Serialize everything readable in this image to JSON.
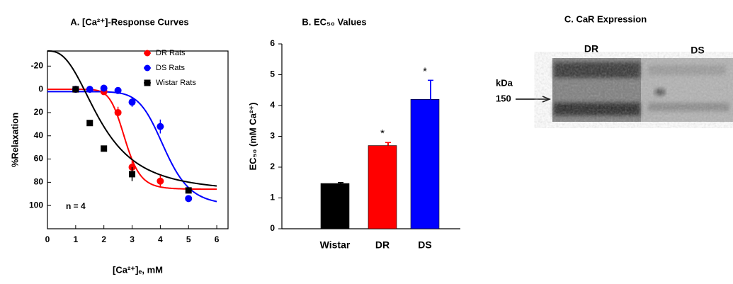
{
  "chart_data": [
    {
      "type": "line",
      "title": "A. [Ca²⁺]-Response Curves",
      "x_label": "[Ca²⁺]ₑ, mM",
      "y_label": "%Relaxation",
      "xlim": [
        0,
        6.4
      ],
      "xticks": [
        0,
        1,
        2,
        3,
        4,
        5,
        6
      ],
      "ylim": [
        -33,
        120
      ],
      "y_reversed": true,
      "yticks": [
        -20,
        0,
        20,
        40,
        60,
        80,
        100
      ],
      "annotation": "n = 4",
      "legend": "upper right",
      "series": [
        {
          "name": "DR Rats",
          "color": "#ff0000",
          "marker": "circle",
          "x": [
            1,
            2,
            2.5,
            3,
            4
          ],
          "values": [
            0,
            2,
            20,
            67,
            79
          ],
          "errors": [
            1,
            2,
            5,
            6,
            5
          ],
          "fit": {
            "top": 0,
            "bottom": 86,
            "x50": 2.75,
            "hill": 10
          }
        },
        {
          "name": "DS Rats",
          "color": "#0000ff",
          "marker": "circle",
          "x": [
            1,
            1.5,
            2,
            2.5,
            3,
            4,
            5
          ],
          "values": [
            0,
            0,
            -1,
            1,
            11,
            32,
            94
          ],
          "errors": [
            1,
            1,
            2,
            1,
            4,
            6,
            2
          ],
          "fit": {
            "top": 2,
            "bottom": 100,
            "x50": 4.15,
            "hill": 9
          }
        },
        {
          "name": "Wistar Rats",
          "color": "#000000",
          "marker": "square",
          "x": [
            1,
            1.5,
            2,
            3,
            5
          ],
          "values": [
            0,
            29,
            51,
            73,
            87
          ],
          "errors": [
            1,
            2,
            2,
            6,
            2
          ],
          "fit": {
            "top": -33,
            "bottom": 89,
            "x50": 1.9,
            "hill": 2.6
          }
        }
      ]
    },
    {
      "type": "bar",
      "title": "B. EC₅₀ Values",
      "y_label": "EC₅₀ (mM Ca²⁺)",
      "categories": [
        "Wistar",
        "DR",
        "DS"
      ],
      "values": [
        1.47,
        2.7,
        4.2
      ],
      "errors": [
        0.03,
        0.1,
        0.62
      ],
      "colors": [
        "#000000",
        "#ff0000",
        "#0000ff"
      ],
      "significance": [
        null,
        "*",
        "*"
      ],
      "ylim": [
        0,
        6
      ],
      "yticks": [
        0,
        1,
        2,
        3,
        4,
        5,
        6
      ]
    }
  ],
  "blot": {
    "title": "C. CaR Expression",
    "lanes": [
      "DR",
      "DS"
    ],
    "marker_unit": "kDa",
    "marker_label": 150
  }
}
